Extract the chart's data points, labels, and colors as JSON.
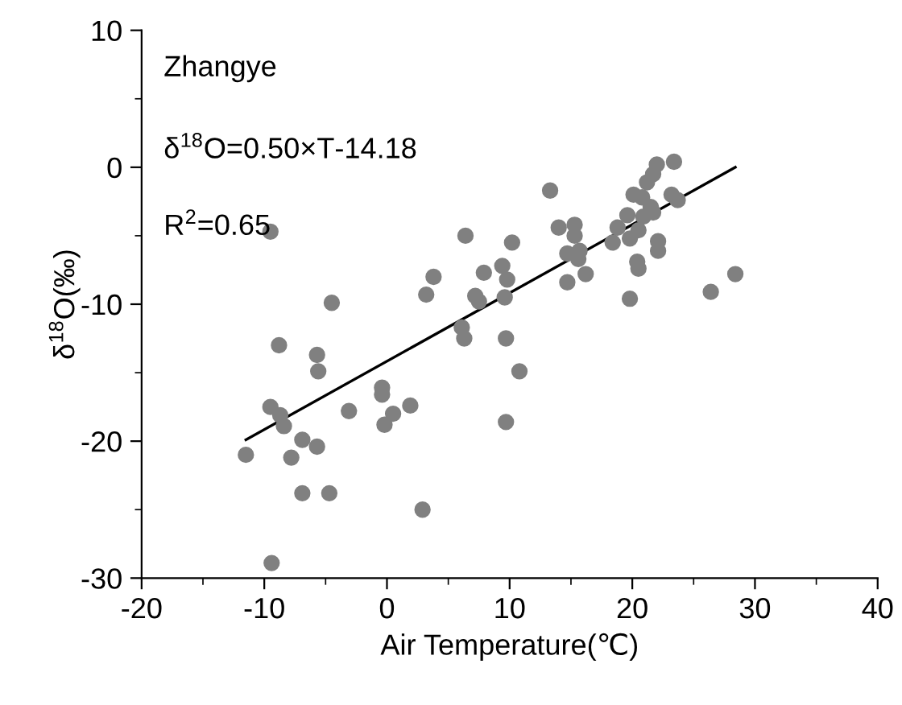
{
  "chart_data": {
    "type": "scatter",
    "xlabel": "Air Temperature(℃)",
    "ylabel": "δ$^{18}$O(‰)",
    "annotations": [
      "Zhangye",
      "δ$^{18}$O=0.50×T-14.18",
      "R$^{2}$=0.65"
    ],
    "xlim": [
      -20,
      40
    ],
    "xticks": [
      -20,
      -10,
      0,
      10,
      20,
      30,
      40
    ],
    "ylim": [
      -30,
      10
    ],
    "yticks": [
      -30,
      -20,
      -10,
      0,
      10
    ],
    "grid": false,
    "legend": false,
    "marker": "circle",
    "series": [
      {
        "color": "#808080",
        "x": [
          -11.5,
          -9.5,
          -8.8,
          -8.7,
          -8.4,
          -9.4,
          -7.8,
          -6.9,
          -6.9,
          -5.7,
          -5.6,
          -5.7,
          -4.7,
          -4.5,
          -3.1,
          -0.4,
          -0.4,
          -0.2,
          0.5,
          1.9,
          2.9,
          3.2,
          3.8,
          6.1,
          6.3,
          6.4,
          7.2,
          7.5,
          7.9,
          9.4,
          9.8,
          9.6,
          9.7,
          9.7,
          10.2,
          -9.5,
          10.8,
          13.3,
          14.0,
          15.3,
          15.3,
          14.7,
          15.7,
          15.6,
          14.7,
          16.2,
          18.4,
          18.8,
          19.6,
          20.1,
          20.8,
          19.8,
          20.5,
          20.9,
          21.5,
          21.7,
          21.2,
          21.7,
          22.0,
          23.4,
          23.2,
          23.7,
          20.4,
          20.5,
          22.1,
          22.1,
          19.8,
          26.4,
          28.4
        ],
        "values": [
          -21.0,
          -17.5,
          -13.0,
          -18.1,
          -18.9,
          -28.9,
          -21.2,
          -19.9,
          -23.8,
          -13.7,
          -14.9,
          -20.4,
          -23.8,
          -9.9,
          -17.8,
          -16.1,
          -16.6,
          -18.8,
          -18.0,
          -17.4,
          -25.0,
          -9.3,
          -8.0,
          -11.7,
          -12.5,
          -5.0,
          -9.4,
          -9.8,
          -7.7,
          -7.2,
          -8.2,
          -9.5,
          -12.5,
          -18.6,
          -5.5,
          -4.7,
          -14.9,
          -1.7,
          -4.4,
          -4.2,
          -5.0,
          -6.3,
          -6.1,
          -6.7,
          -8.4,
          -7.8,
          -5.5,
          -4.4,
          -3.5,
          -2.0,
          -2.2,
          -5.2,
          -4.6,
          -3.6,
          -2.9,
          -3.3,
          -1.1,
          -0.5,
          0.2,
          0.4,
          -2.0,
          -2.4,
          -6.9,
          -7.4,
          -5.4,
          -6.1,
          -9.6,
          -9.1,
          -7.8
        ]
      },
      {
        "type": "line",
        "color": "#000000",
        "x": [
          -11.5,
          28.4
        ],
        "values": [
          -19.9,
          0.0
        ],
        "marker": "none",
        "line_style": "solid"
      }
    ]
  }
}
